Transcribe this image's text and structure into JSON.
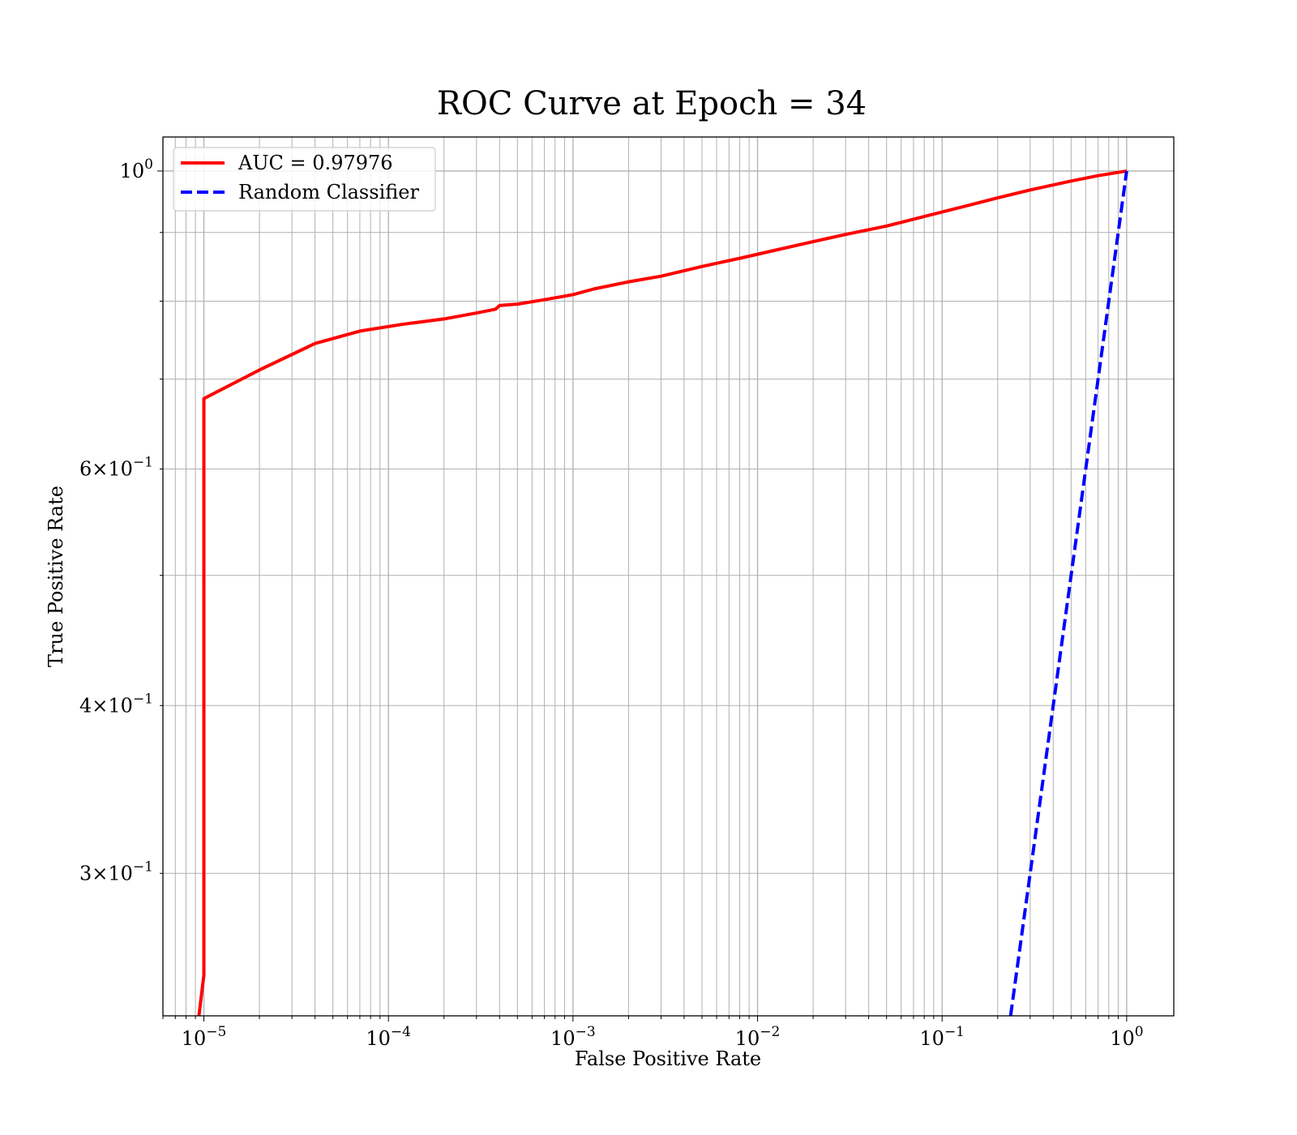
{
  "chart_data": {
    "type": "line",
    "title": "ROC Curve at Epoch = 34",
    "xlabel": "False Positive Rate",
    "ylabel": "True Positive Rate",
    "xscale": "log",
    "yscale": "log",
    "xlim": [
      6e-06,
      1.8
    ],
    "ylim": [
      0.235,
      1.06
    ],
    "grid": "major and minor on both axes",
    "x_ticks": [
      {
        "value": 1e-05,
        "base": "10",
        "exp": "−5"
      },
      {
        "value": 0.0001,
        "base": "10",
        "exp": "−4"
      },
      {
        "value": 0.001,
        "base": "10",
        "exp": "−3"
      },
      {
        "value": 0.01,
        "base": "10",
        "exp": "−2"
      },
      {
        "value": 0.1,
        "base": "10",
        "exp": "−1"
      },
      {
        "value": 1,
        "base": "10",
        "exp": "0"
      }
    ],
    "y_ticks": [
      {
        "value": 1.0,
        "base": "10",
        "exp": "0"
      },
      {
        "value": 0.6,
        "base": "6×10",
        "exp": "−1"
      },
      {
        "value": 0.4,
        "base": "4×10",
        "exp": "−1"
      },
      {
        "value": 0.3,
        "base": "3×10",
        "exp": "−1"
      }
    ],
    "legend_position": "top-left",
    "series": [
      {
        "name": "AUC = 0.97976",
        "color": "#ff0000",
        "style": "solid",
        "x": [
          9.4e-06,
          1e-05,
          1e-05,
          2e-05,
          4e-05,
          7e-05,
          0.00012,
          0.0002,
          0.0003,
          0.00038,
          0.0004,
          0.0005,
          0.0007,
          0.001,
          0.0013,
          0.002,
          0.003,
          0.005,
          0.008,
          0.012,
          0.02,
          0.03,
          0.05,
          0.08,
          0.12,
          0.2,
          0.3,
          0.5,
          0.7,
          1.0
        ],
        "y": [
          0.235,
          0.252,
          0.677,
          0.711,
          0.744,
          0.76,
          0.769,
          0.776,
          0.784,
          0.789,
          0.794,
          0.796,
          0.802,
          0.809,
          0.817,
          0.827,
          0.835,
          0.849,
          0.861,
          0.872,
          0.886,
          0.897,
          0.91,
          0.925,
          0.938,
          0.955,
          0.968,
          0.983,
          0.992,
          1.0
        ]
      },
      {
        "name": "Random Classifier",
        "color": "#0000ff",
        "style": "dashed",
        "x": [
          0.235,
          1.0
        ],
        "y": [
          0.235,
          1.0
        ]
      }
    ]
  }
}
